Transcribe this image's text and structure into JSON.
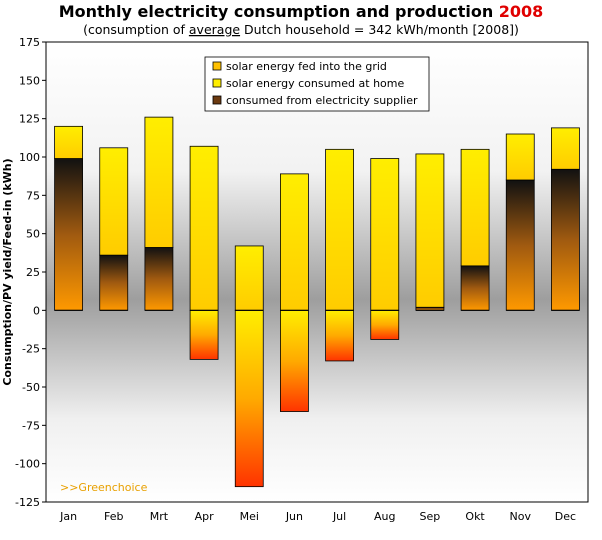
{
  "title": {
    "main": "Monthly electricity consumption and production ",
    "year": "2008",
    "subtitle_before": "(consumption of ",
    "subtitle_underlined": "average",
    "subtitle_after": " Dutch household = 342 kWh/month [2008])"
  },
  "brand": ">>Greenchoice",
  "colors": {
    "fed_top": "#ff3300",
    "fed_bottom": "#ffe000",
    "home_bottom": "#ffcc00",
    "home_top": "#ffff00",
    "supplier_top": "#111111",
    "supplier_bottom": "#ff9900",
    "background_mid": "#9e9e9e",
    "background_edge": "#ffffff"
  },
  "chart_data": {
    "type": "bar",
    "stacked": true,
    "ylabel": "Consumption/PV yield/Feed-in (kWh)",
    "xlabel": "",
    "ylim": [
      -125,
      175
    ],
    "yticks": [
      175,
      150,
      125,
      100,
      75,
      50,
      25,
      0,
      -25,
      -50,
      -75,
      -100,
      -125
    ],
    "grid": false,
    "legend_position": "top-center",
    "categories": [
      "Jan",
      "Feb",
      "Mrt",
      "Apr",
      "Mei",
      "Jun",
      "Jul",
      "Aug",
      "Sep",
      "Okt",
      "Nov",
      "Dec"
    ],
    "series": [
      {
        "name": "solar energy fed into the grid",
        "values": [
          0,
          0,
          0,
          -32,
          -115,
          -66,
          -33,
          -19,
          0,
          0,
          0,
          0
        ]
      },
      {
        "name": "solar energy consumed at home",
        "values": [
          21,
          70,
          85,
          107,
          42,
          89,
          105,
          99,
          100,
          76,
          30,
          27
        ]
      },
      {
        "name": "consumed from electricity supplier",
        "values": [
          99,
          36,
          41,
          0,
          0,
          0,
          0,
          0,
          2,
          29,
          85,
          92
        ]
      }
    ]
  }
}
